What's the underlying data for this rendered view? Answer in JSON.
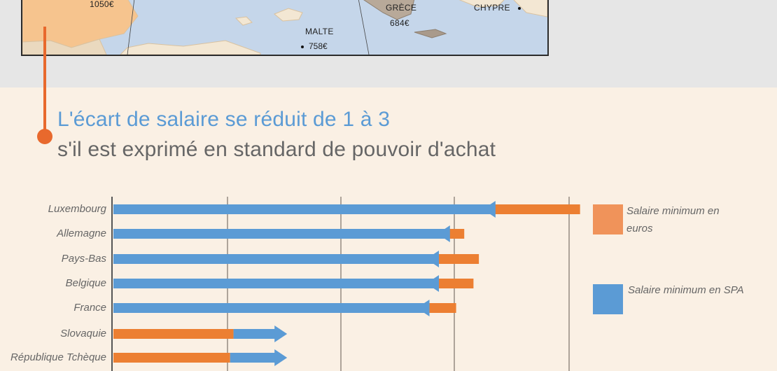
{
  "map": {
    "labels": [
      {
        "id": "espagne-value",
        "text": "1050€"
      },
      {
        "id": "grece-name",
        "text": "GRÈCE"
      },
      {
        "id": "grece-value",
        "text": "684€"
      },
      {
        "id": "chypre-name",
        "text": "CHYPRE"
      },
      {
        "id": "malte-name",
        "text": "MALTE"
      },
      {
        "id": "malte-value",
        "text": "758€"
      }
    ]
  },
  "heading": {
    "title": "L'écart de salaire se réduit de 1 à 3",
    "subtitle": "s'il est exprimé en standard de pouvoir d'achat"
  },
  "legend": {
    "euros": "Salaire minimum en euros",
    "spa": "Salaire minimum en SPA"
  },
  "colors": {
    "euros": "#ec7f32",
    "spa": "#5b9bd5",
    "legend_euros": "#f0935a",
    "legend_spa": "#5b9bd5",
    "accent": "#e8692d"
  },
  "chart_data": {
    "type": "bar",
    "orientation": "horizontal",
    "categories": [
      "Luxembourg",
      "Allemagne",
      "Pays-Bas",
      "Belgique",
      "France",
      "Slovaquie",
      "République Tchèque"
    ],
    "series": [
      {
        "name": "Salaire minimum en euros",
        "values": [
          2071,
          1557,
          1622,
          1598,
          1521,
          533,
          518
        ]
      },
      {
        "name": "Salaire minimum en SPA",
        "values": [
          1677,
          1475,
          1426,
          1426,
          1384,
          771,
          771
        ]
      }
    ],
    "xlim": [
      0,
      2100
    ],
    "grid": true,
    "legend_position": "right"
  }
}
